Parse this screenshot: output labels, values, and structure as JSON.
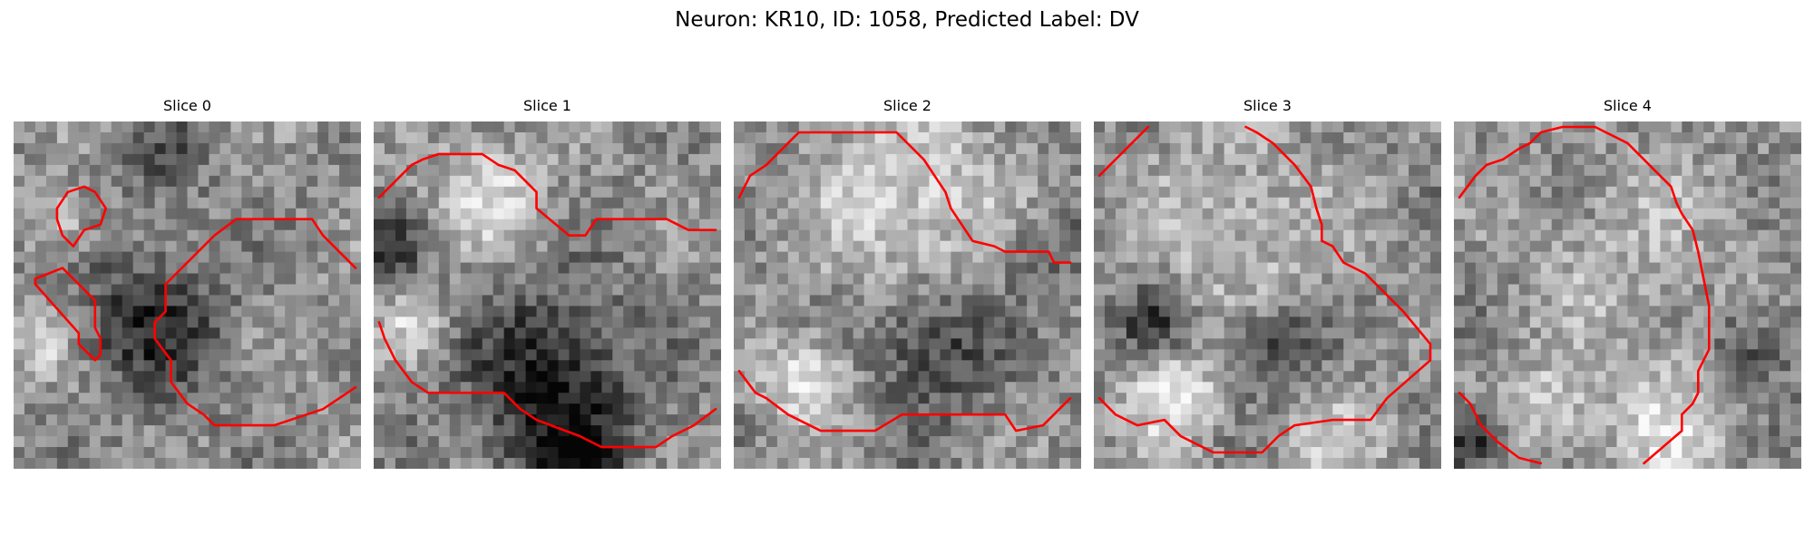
{
  "figure": {
    "title": "Neuron: KR10, ID: 1058, Predicted Label: DV"
  },
  "panels": [
    {
      "title": "Slice 0"
    },
    {
      "title": "Slice 1"
    },
    {
      "title": "Slice 2"
    },
    {
      "title": "Slice 3"
    },
    {
      "title": "Slice 4"
    }
  ],
  "style": {
    "contour_color": "#ff0000",
    "colormap": "grayscale"
  }
}
